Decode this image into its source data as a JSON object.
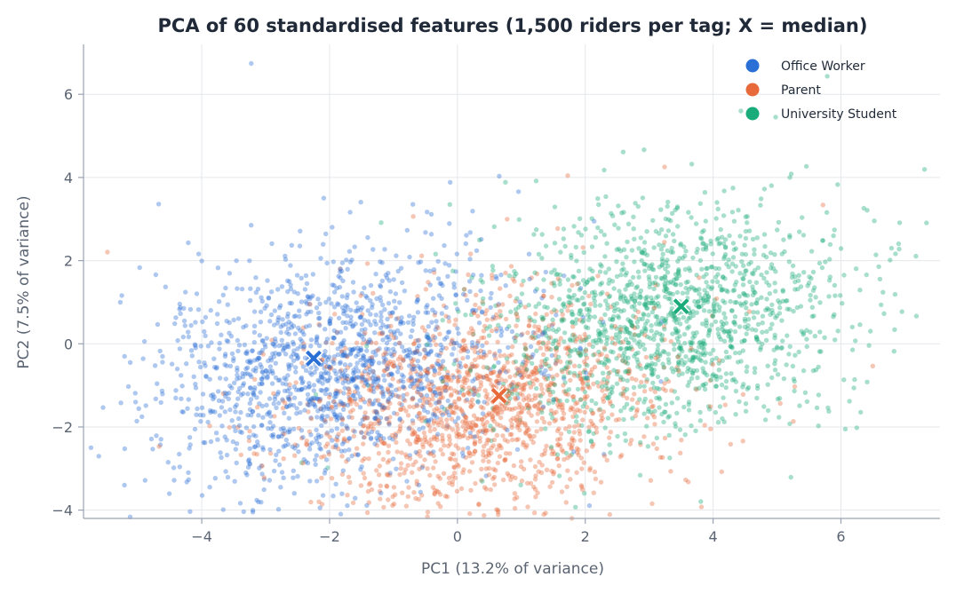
{
  "chart_data": {
    "type": "scatter",
    "title": "PCA of 60 standardised features (1,500 riders per tag; X = median)",
    "xlabel": "PC1 (13.2% of variance)",
    "ylabel": "PC2 (7.5% of variance)",
    "xlim": [
      -5.85,
      7.55
    ],
    "ylim": [
      -4.2,
      7.2
    ],
    "xticks": [
      -4,
      -2,
      0,
      2,
      4,
      6
    ],
    "yticks": [
      -4,
      -2,
      0,
      2,
      4,
      6
    ],
    "xtick_labels": [
      "−4",
      "−2",
      "0",
      "2",
      "4",
      "6"
    ],
    "ytick_labels": [
      "−4",
      "−2",
      "0",
      "2",
      "4",
      "6"
    ],
    "grid": true,
    "legend_position": "top-right",
    "points_per_series": 1500,
    "series": [
      {
        "name": "Office Worker",
        "color": "#2a6fd6",
        "median": [
          -2.25,
          -0.35
        ],
        "approx_center": [
          -2.0,
          -0.6
        ],
        "approx_spread": [
          1.35,
          1.25
        ]
      },
      {
        "name": "Parent",
        "color": "#e8693a",
        "median": [
          0.65,
          -1.25
        ],
        "approx_center": [
          0.4,
          -1.5
        ],
        "approx_spread": [
          1.35,
          1.2
        ]
      },
      {
        "name": "University Student",
        "color": "#1aab7a",
        "median": [
          3.5,
          0.9
        ],
        "approx_center": [
          3.3,
          0.6
        ],
        "approx_spread": [
          1.3,
          1.25
        ]
      }
    ]
  }
}
